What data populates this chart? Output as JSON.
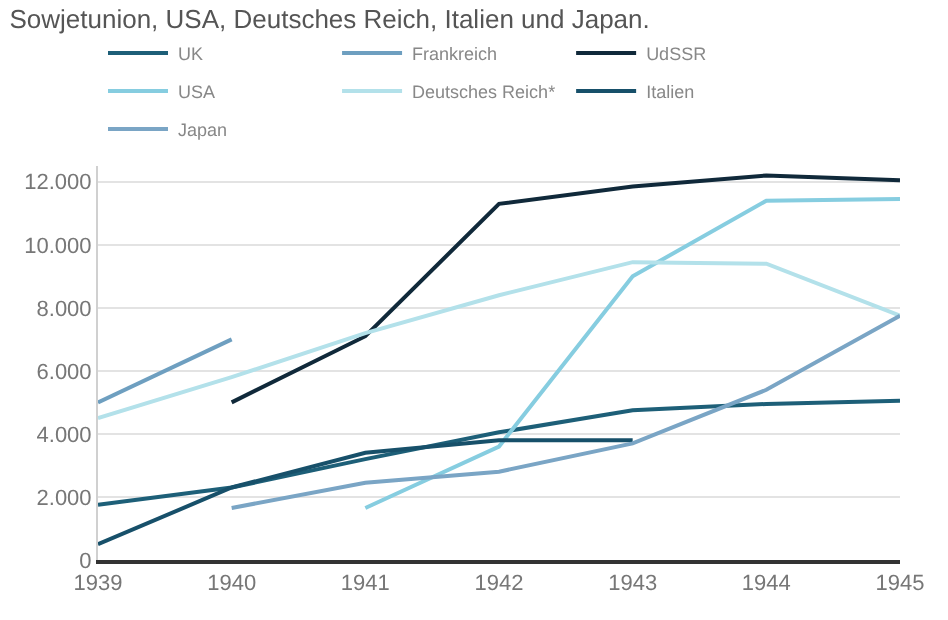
{
  "chart_data": {
    "type": "line",
    "title": "Sowjetunion, USA, Deutsches Reich, Italien und Japan.",
    "x": [
      1939,
      1940,
      1941,
      1942,
      1943,
      1944,
      1945
    ],
    "series": [
      {
        "name": "UK",
        "color": "#1d5f78",
        "values": [
          1750,
          2300,
          3200,
          4050,
          4750,
          4950,
          5050
        ]
      },
      {
        "name": "Frankreich",
        "color": "#6e9fc0",
        "values": [
          5000,
          7000,
          null,
          null,
          null,
          null,
          null
        ]
      },
      {
        "name": "UdSSR",
        "color": "#10293a",
        "values": [
          null,
          5000,
          7100,
          11300,
          11850,
          12200,
          12050
        ]
      },
      {
        "name": "USA",
        "color": "#86cde0",
        "values": [
          null,
          null,
          1650,
          3600,
          9000,
          11400,
          11450
        ]
      },
      {
        "name": "Deutsches Reich*",
        "color": "#b3e1ea",
        "values": [
          4500,
          5800,
          7200,
          8400,
          9450,
          9400,
          7750
        ]
      },
      {
        "name": "Italien",
        "color": "#17506a",
        "values": [
          500,
          2300,
          3400,
          3800,
          3800,
          null,
          null
        ]
      },
      {
        "name": "Japan",
        "color": "#7aa5c5",
        "values": [
          null,
          1650,
          2450,
          2800,
          3700,
          5400,
          7750
        ]
      }
    ],
    "xlim": [
      1939,
      1945
    ],
    "xticks": [
      1939,
      1940,
      1941,
      1942,
      1943,
      1944,
      1945
    ],
    "ylim": [
      0,
      12500
    ],
    "yticks": [
      {
        "value": 0,
        "label": "0"
      },
      {
        "value": 2000,
        "label": "2.000"
      },
      {
        "value": 4000,
        "label": "4.000"
      },
      {
        "value": 6000,
        "label": "6.000"
      },
      {
        "value": 8000,
        "label": "8.000"
      },
      {
        "value": 10000,
        "label": "10.000"
      },
      {
        "value": 12000,
        "label": "12.000"
      }
    ],
    "grid": "y",
    "legend": "top",
    "marker": "none",
    "line_style": "solid"
  }
}
